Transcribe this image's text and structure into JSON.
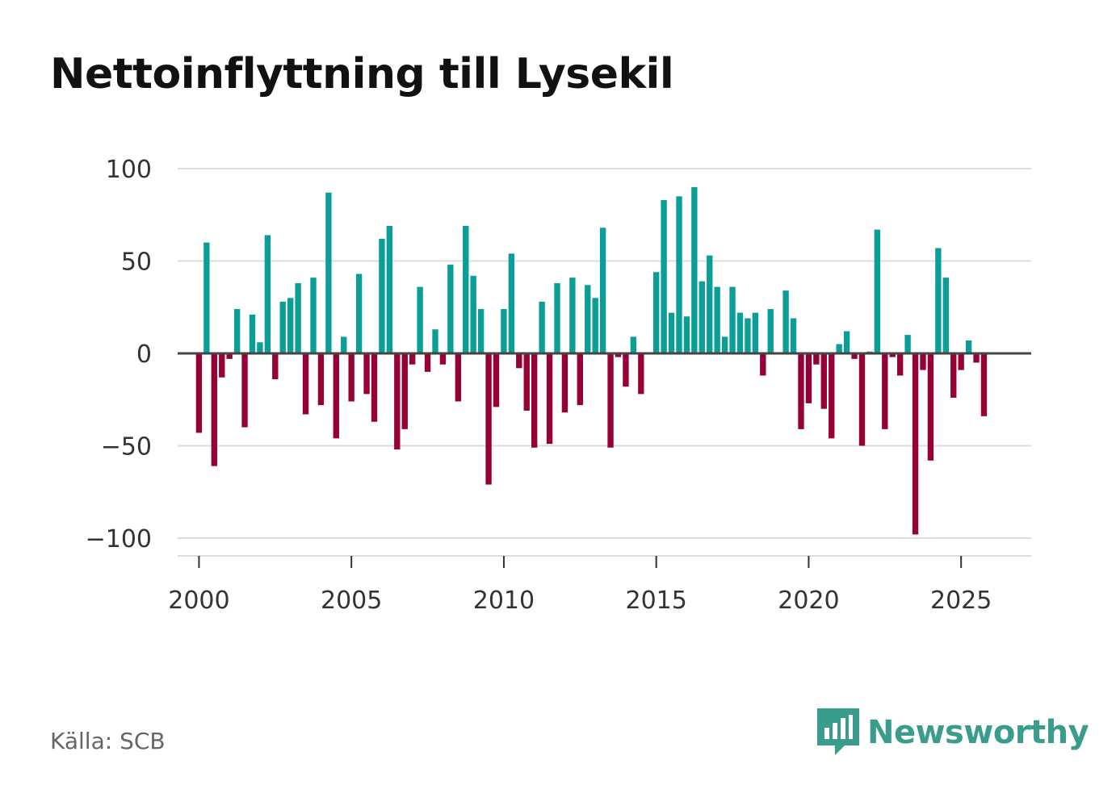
{
  "title": "Nettoinflyttning till Lysekil",
  "source": "Källa: SCB",
  "brand": "Newsworthy",
  "colors": {
    "positive": "#0a9e96",
    "negative": "#960036",
    "grid": "#dddddd",
    "zero": "#444444",
    "brand": "#3a9c8c"
  },
  "chart_data": {
    "type": "bar",
    "title": "Nettoinflyttning till Lysekil",
    "xlabel": "",
    "ylabel": "",
    "ylim": [
      -105,
      105
    ],
    "xlim": [
      1999.3,
      2027.3
    ],
    "yticks": [
      100,
      50,
      0,
      -50,
      -100
    ],
    "ytick_labels": [
      "100",
      "50",
      "0",
      "−50",
      "−100"
    ],
    "xticks": [
      2000,
      2005,
      2010,
      2015,
      2020,
      2025
    ],
    "xtick_labels": [
      "2000",
      "2005",
      "2010",
      "2015",
      "2020",
      "2025"
    ],
    "start_year": 2000,
    "periods_per_year": 4,
    "values": [
      -43,
      60,
      -61,
      -13,
      -3,
      24,
      -40,
      21,
      6,
      64,
      -14,
      28,
      30,
      38,
      -33,
      41,
      -28,
      87,
      -46,
      9,
      -26,
      43,
      -22,
      -37,
      62,
      69,
      -52,
      -41,
      -6,
      36,
      -10,
      13,
      -6,
      48,
      -26,
      69,
      42,
      24,
      -71,
      -29,
      24,
      54,
      -8,
      -31,
      -51,
      28,
      -49,
      38,
      -32,
      41,
      -28,
      37,
      30,
      68,
      -51,
      -2,
      -18,
      9,
      -22,
      0,
      44,
      83,
      22,
      85,
      20,
      90,
      39,
      53,
      36,
      9,
      36,
      22,
      19,
      22,
      -12,
      24,
      0,
      34,
      19,
      -41,
      -27,
      -6,
      -30,
      -46,
      5,
      12,
      -3,
      -50,
      1,
      67,
      -41,
      -2,
      -12,
      10,
      -98,
      -9,
      -58,
      57,
      41,
      -24,
      -9,
      7,
      -5,
      -34
    ]
  }
}
